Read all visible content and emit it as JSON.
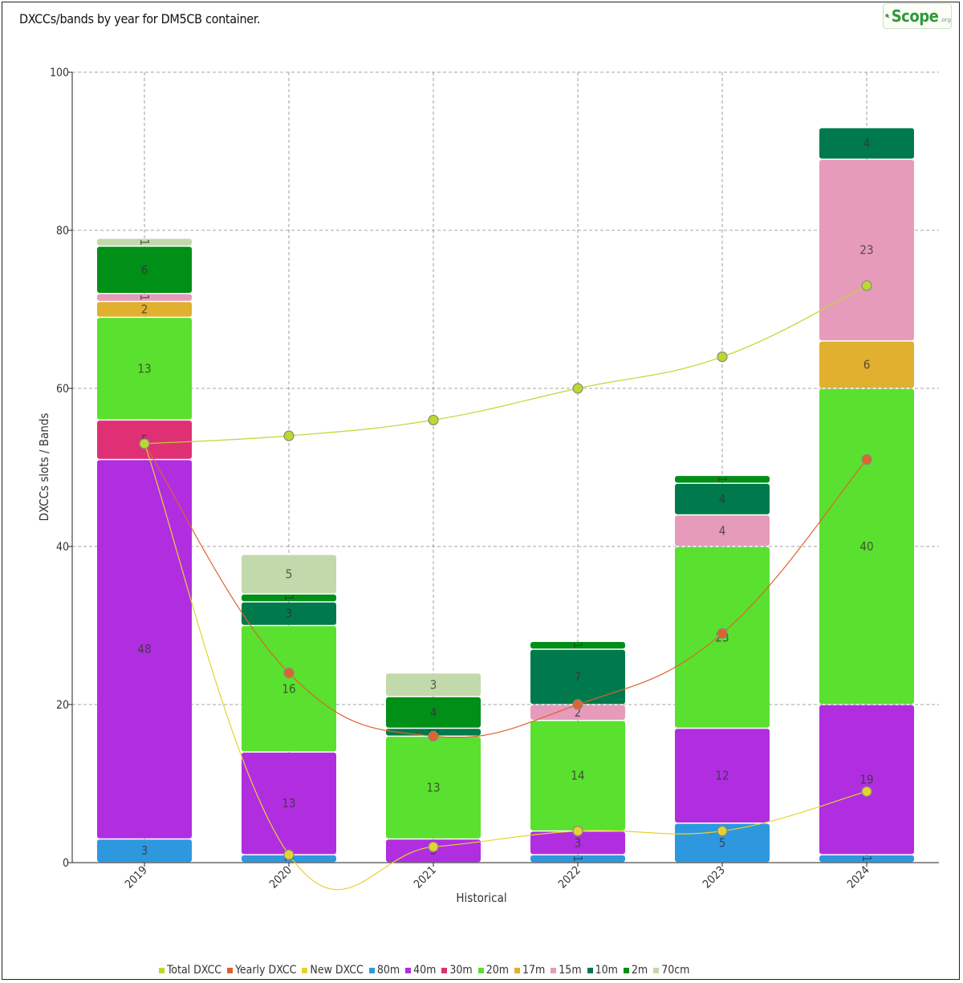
{
  "title": "DXCCs/bands by year for DM5CB container.",
  "logo": {
    "text": "Scope",
    "suffix": ".org"
  },
  "chart_data": {
    "type": "bar",
    "stacked": true,
    "categories": [
      "2019",
      "2020",
      "2021",
      "2022",
      "2023",
      "2024"
    ],
    "xlabel": "Historical",
    "ylabel": "DXCCs slots / Bands",
    "ylim": [
      0,
      100
    ],
    "yticks": [
      0,
      20,
      40,
      60,
      80,
      100
    ],
    "grid": true,
    "legend_position": "bottom",
    "bar_series": [
      {
        "name": "80m",
        "color": "#2e98df",
        "values": [
          3,
          1,
          0,
          1,
          5,
          1
        ]
      },
      {
        "name": "40m",
        "color": "#b02ee0",
        "values": [
          48,
          13,
          3,
          3,
          12,
          19
        ]
      },
      {
        "name": "30m",
        "color": "#e03075",
        "values": [
          5,
          0,
          0,
          0,
          0,
          0
        ]
      },
      {
        "name": "20m",
        "color": "#5ae02e",
        "values": [
          13,
          16,
          13,
          14,
          23,
          40
        ]
      },
      {
        "name": "17m",
        "color": "#e0b02e",
        "values": [
          2,
          0,
          0,
          0,
          0,
          6
        ]
      },
      {
        "name": "15m",
        "color": "#e79bbb",
        "values": [
          1,
          0,
          0,
          2,
          4,
          23
        ]
      },
      {
        "name": "10m",
        "color": "#007a4c",
        "values": [
          0,
          3,
          1,
          7,
          4,
          4
        ]
      },
      {
        "name": "2m",
        "color": "#008f17",
        "values": [
          6,
          1,
          4,
          1,
          1,
          0
        ]
      },
      {
        "name": "70cm",
        "color": "#c2d9ac",
        "values": [
          1,
          5,
          3,
          0,
          0,
          0
        ]
      }
    ],
    "line_series": [
      {
        "name": "Total DXCC",
        "color": "#bcd82e",
        "stroke": "#bcd82e",
        "values": [
          53,
          54,
          56,
          60,
          64,
          73
        ]
      },
      {
        "name": "Yearly DXCC",
        "color": "#e0622e",
        "stroke": "#e0622e",
        "values": [
          53,
          24,
          16,
          20,
          29,
          51
        ]
      },
      {
        "name": "New DXCC",
        "color": "#e6d22e",
        "stroke": "#e6d22e",
        "values": [
          53,
          1,
          2,
          4,
          4,
          9
        ]
      }
    ]
  },
  "legend_order": [
    "Total DXCC",
    "Yearly DXCC",
    "New DXCC",
    "80m",
    "40m",
    "30m",
    "20m",
    "17m",
    "15m",
    "10m",
    "2m",
    "70cm"
  ]
}
